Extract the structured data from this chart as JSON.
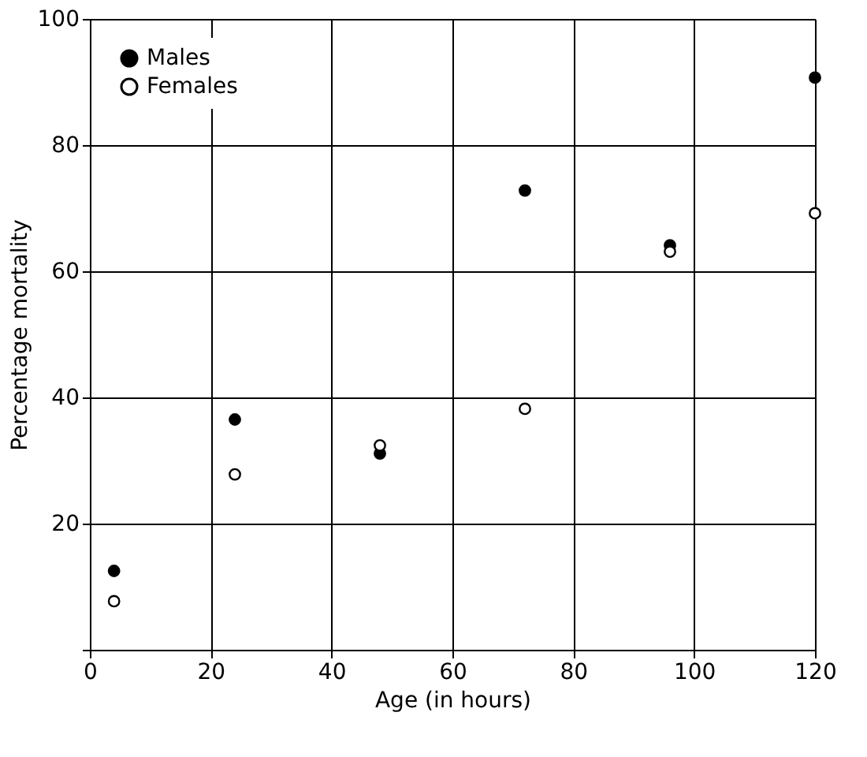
{
  "chart_data": {
    "type": "scatter",
    "xlabel": "Age (in hours)",
    "ylabel": "Percentage mortality",
    "x": [
      4,
      24,
      48,
      72,
      96,
      120
    ],
    "series": [
      {
        "name": "Males",
        "color": "#000000",
        "marker": "circle",
        "values": [
          12.5,
          36.5,
          31.1,
          72.8,
          64.1,
          90.7
        ]
      },
      {
        "name": "Females",
        "color": "#ffffff",
        "marker": "circle",
        "values": [
          7.7,
          27.8,
          32.4,
          38.2,
          63.1,
          69.2
        ]
      }
    ],
    "xlim": [
      0,
      120
    ],
    "xticks": [
      0,
      20,
      40,
      60,
      80,
      100,
      120
    ],
    "ylim": [
      0,
      100
    ],
    "yticks": [
      {
        "value": 0,
        "label": null
      },
      20,
      40,
      60,
      80,
      100
    ],
    "grid": true,
    "legend": "top left"
  }
}
